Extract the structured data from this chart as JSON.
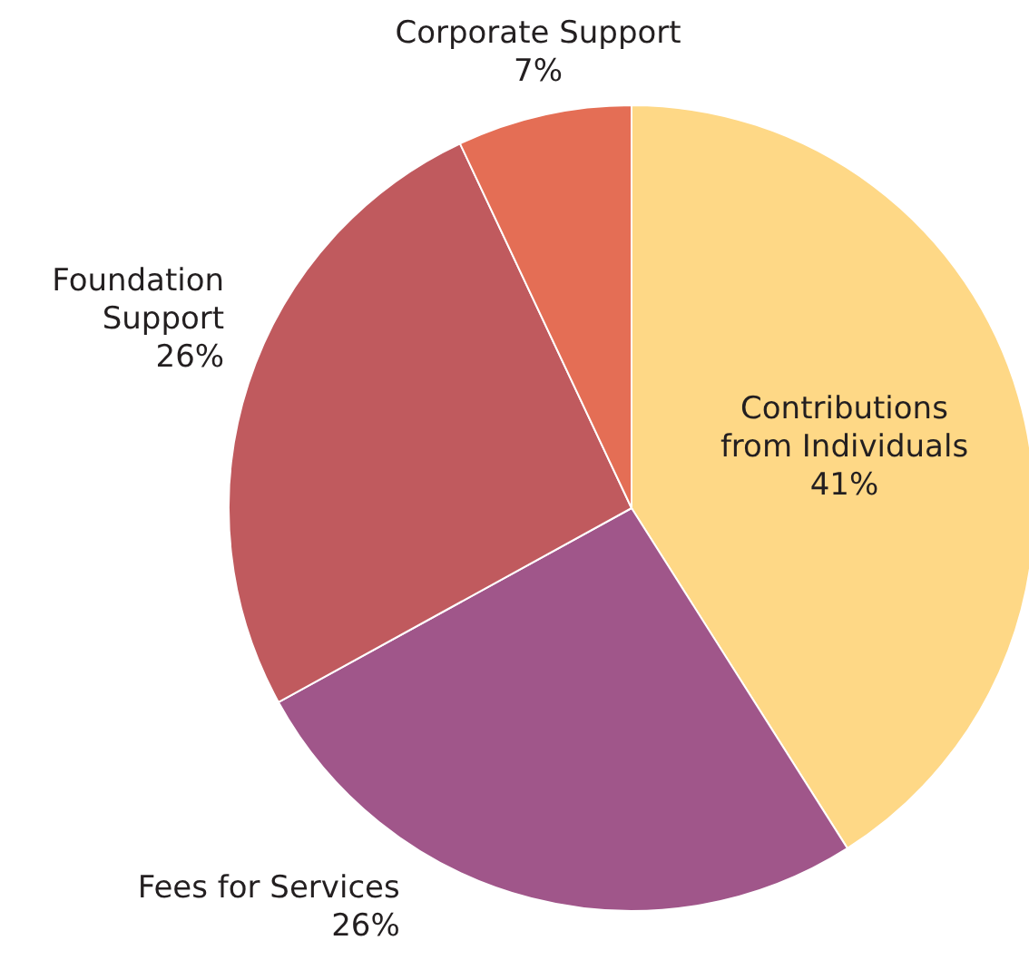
{
  "chart_data": {
    "type": "pie",
    "categories": [
      "Contributions\nfrom Individuals",
      "Fees for Services",
      "Foundation\nSupport",
      "Corporate Support"
    ],
    "values": [
      41,
      26,
      26,
      7
    ],
    "colors": [
      "#fed886",
      "#a0568a",
      "#c05a5e",
      "#e46e55"
    ],
    "value_labels": [
      "41%",
      "26%",
      "26%",
      "7%"
    ]
  }
}
